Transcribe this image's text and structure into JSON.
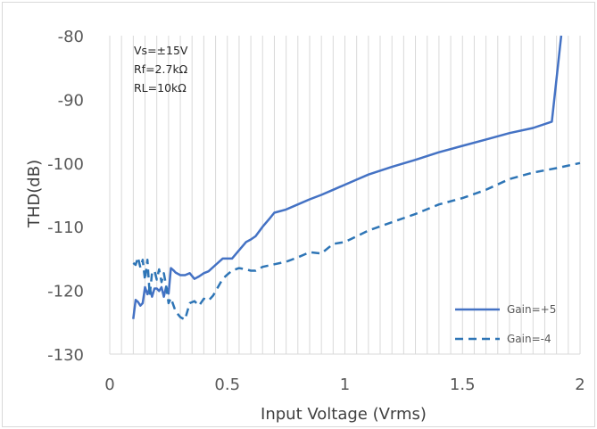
{
  "chart_data": {
    "type": "line",
    "xlabel": "Input Voltage (Vrms)",
    "ylabel": "THD(dB)",
    "xlim": [
      0,
      2
    ],
    "ylim": [
      -130,
      -80
    ],
    "x_ticks": [
      0,
      0.5,
      1,
      1.5,
      2
    ],
    "x_tick_labels": [
      "0",
      "0.5",
      "1",
      "1.5",
      "2"
    ],
    "y_ticks": [
      -80,
      -90,
      -100,
      -110,
      -120,
      -130
    ],
    "y_tick_labels": [
      "-80",
      "-90",
      "-100",
      "-110",
      "-120",
      "-130"
    ],
    "grid": "vertical",
    "legend_position": "bottom-right",
    "annotations": [
      "Vs=±15V",
      "Rf=2.7kΩ",
      "RL=10kΩ"
    ],
    "series": [
      {
        "name": "Gain=+5",
        "style": "solid",
        "color": "#4472C4",
        "x": [
          0.1,
          0.11,
          0.12,
          0.13,
          0.14,
          0.15,
          0.16,
          0.17,
          0.18,
          0.19,
          0.2,
          0.21,
          0.22,
          0.23,
          0.24,
          0.25,
          0.26,
          0.27,
          0.28,
          0.3,
          0.32,
          0.34,
          0.36,
          0.38,
          0.4,
          0.42,
          0.45,
          0.48,
          0.5,
          0.52,
          0.55,
          0.58,
          0.6,
          0.62,
          0.65,
          0.68,
          0.7,
          0.75,
          0.8,
          0.85,
          0.9,
          0.95,
          1.0,
          1.05,
          1.1,
          1.2,
          1.3,
          1.4,
          1.5,
          1.6,
          1.7,
          1.8,
          1.88,
          1.92
        ],
        "y": [
          -124.5,
          -121.5,
          -121.8,
          -122.4,
          -122.0,
          -119.5,
          -120.6,
          -119.6,
          -121.0,
          -119.7,
          -119.7,
          -120.1,
          -119.5,
          -121.0,
          -119.4,
          -120.5,
          -116.5,
          -116.8,
          -117.2,
          -117.6,
          -117.6,
          -117.3,
          -118.2,
          -117.8,
          -117.3,
          -117.0,
          -116.0,
          -115.0,
          -115.0,
          -115.0,
          -113.7,
          -112.4,
          -112.0,
          -111.5,
          -110.0,
          -108.7,
          -107.8,
          -107.3,
          -106.5,
          -105.7,
          -105.0,
          -104.2,
          -103.4,
          -102.6,
          -101.8,
          -100.6,
          -99.5,
          -98.3,
          -97.3,
          -96.3,
          -95.3,
          -94.5,
          -93.5,
          -80.0
        ]
      },
      {
        "name": "Gain=-4",
        "style": "dashed",
        "color": "#2E75B6",
        "x": [
          0.1,
          0.11,
          0.12,
          0.13,
          0.14,
          0.15,
          0.16,
          0.17,
          0.18,
          0.19,
          0.2,
          0.21,
          0.22,
          0.23,
          0.24,
          0.25,
          0.26,
          0.28,
          0.3,
          0.32,
          0.34,
          0.36,
          0.38,
          0.4,
          0.42,
          0.44,
          0.46,
          0.48,
          0.5,
          0.52,
          0.55,
          0.58,
          0.6,
          0.62,
          0.65,
          0.7,
          0.75,
          0.8,
          0.85,
          0.9,
          0.95,
          1.0,
          1.05,
          1.1,
          1.2,
          1.3,
          1.4,
          1.5,
          1.6,
          1.7,
          1.8,
          1.9,
          2.0
        ],
        "y": [
          -115.7,
          -116.0,
          -114.8,
          -116.4,
          -115.2,
          -118.4,
          -115.2,
          -120.8,
          -117.2,
          -116.9,
          -118.3,
          -116.7,
          -118.7,
          -117.3,
          -119.3,
          -122.0,
          -121.2,
          -123.3,
          -124.2,
          -124.6,
          -122.0,
          -121.7,
          -122.4,
          -121.3,
          -121.6,
          -120.8,
          -119.5,
          -118.2,
          -117.5,
          -116.9,
          -116.5,
          -116.7,
          -116.9,
          -116.9,
          -116.3,
          -115.9,
          -115.5,
          -114.8,
          -114.0,
          -114.2,
          -112.7,
          -112.4,
          -111.5,
          -110.6,
          -109.3,
          -108.0,
          -106.5,
          -105.5,
          -104.2,
          -102.5,
          -101.5,
          -100.8,
          -100.0
        ]
      }
    ]
  }
}
